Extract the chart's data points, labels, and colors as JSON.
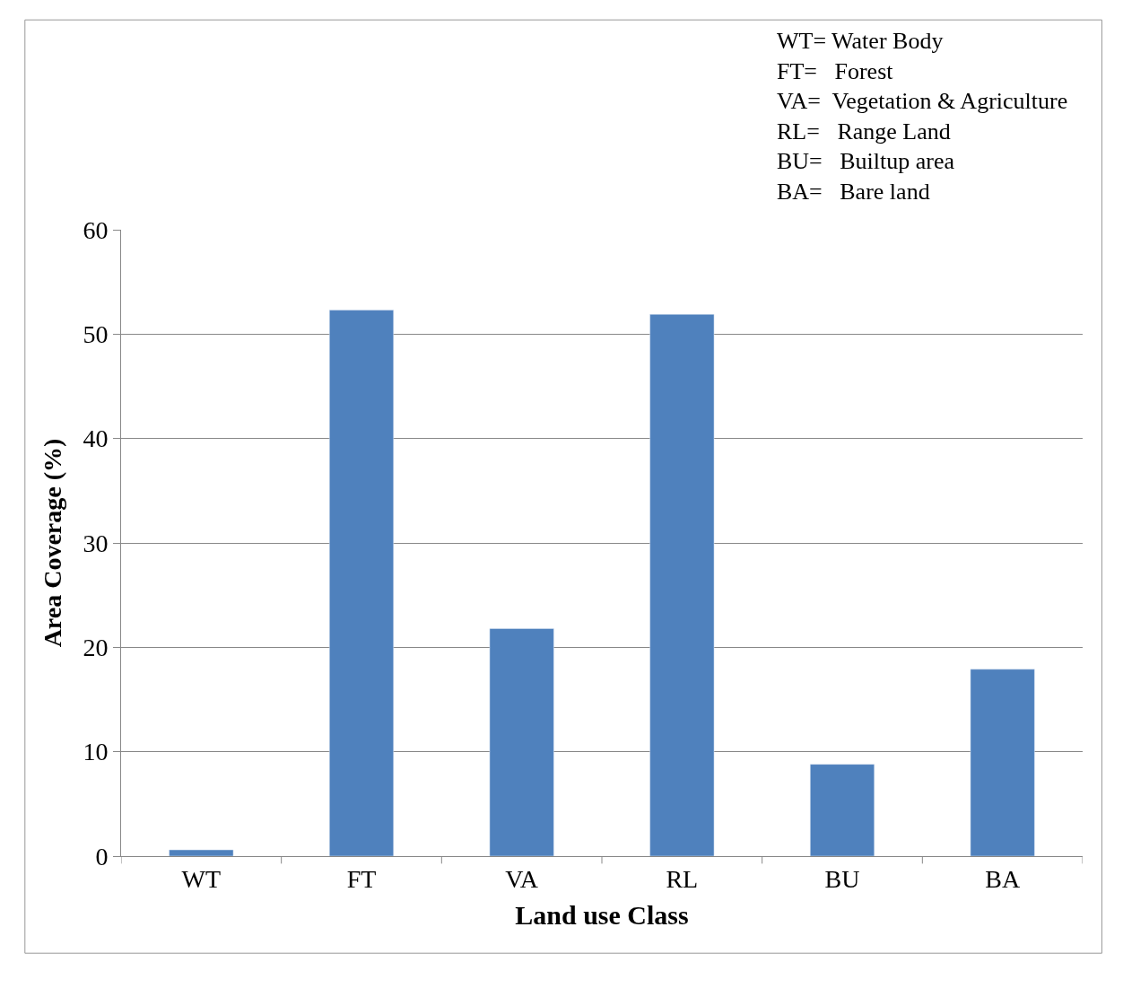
{
  "chart_data": {
    "type": "bar",
    "xlabel": "Land use Class",
    "ylabel": "Area Coverage (%)",
    "categories": [
      "WT",
      "FT",
      "VA",
      "RL",
      "BU",
      "BA"
    ],
    "values": [
      0.6,
      52.3,
      21.8,
      51.9,
      8.8,
      17.9
    ],
    "color": "#4f81bd",
    "ylim": [
      0,
      60
    ],
    "yticks": [
      0,
      10,
      20,
      30,
      40,
      50,
      60
    ],
    "grid": "y",
    "annotations": [
      "WT= Water Body",
      "FT=   Forest",
      "VA=  Vegetation & Agriculture",
      "RL=   Range Land",
      "BU=   Builtup area",
      "BA=   Bare land"
    ]
  }
}
